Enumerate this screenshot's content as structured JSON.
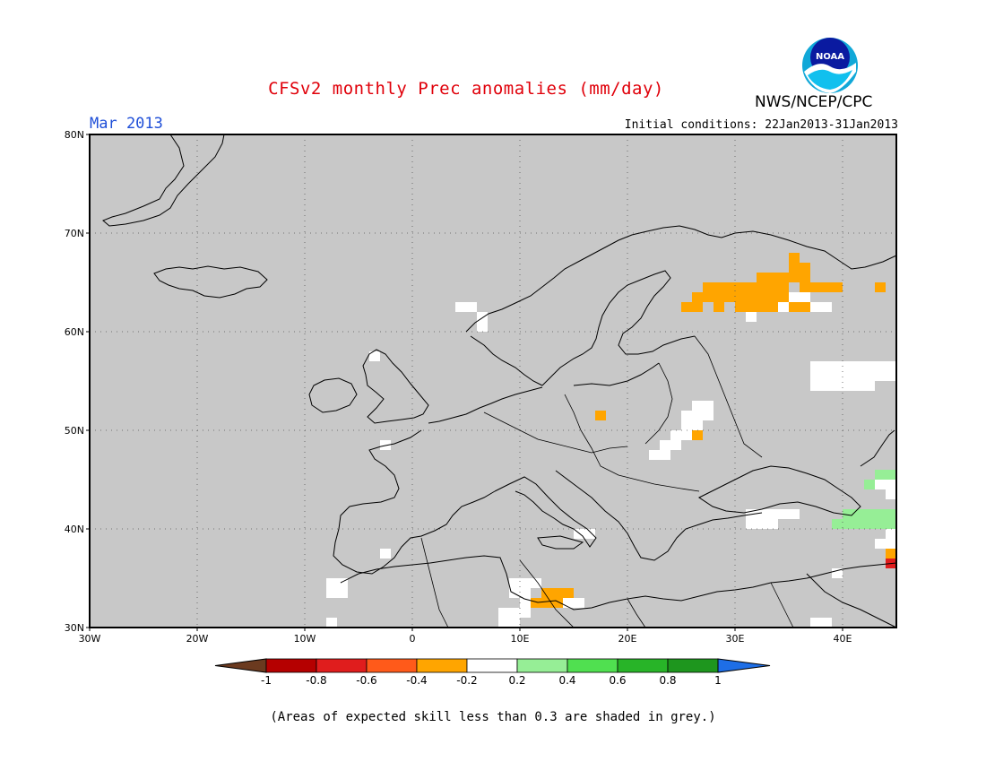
{
  "title": "CFSv2 monthly Prec anomalies (mm/day)",
  "month_label": "Mar 2013",
  "agency": "NWS/NCEP/CPC",
  "initial_conditions": "Initial conditions: 22Jan2013-31Jan2013",
  "footnote": "(Areas of expected skill less than 0.3 are shaded in grey.)",
  "logo_text": "NOAA",
  "colors": {
    "land_skill_grey": "#c8c8c8",
    "title_red": "#e0000a",
    "month_blue": "#1f4fd8"
  },
  "map": {
    "lat_labels": [
      "80N",
      "70N",
      "60N",
      "50N",
      "40N",
      "30N"
    ],
    "lon_labels": [
      "30W",
      "20W",
      "10W",
      "0",
      "10E",
      "20E",
      "30E",
      "40E"
    ]
  },
  "colorbar": {
    "labels": [
      "-1",
      "-0.8",
      "-0.6",
      "-0.4",
      "-0.2",
      "0.2",
      "0.4",
      "0.6",
      "0.8",
      "1"
    ],
    "colors": [
      "#6b3a1f",
      "#b50000",
      "#e01d1d",
      "#ff5a1a",
      "#ffa500",
      "#ffffff",
      "#96ee96",
      "#50e050",
      "#28b428",
      "#1e961e",
      "#1e6ee6"
    ]
  },
  "anomaly_cells": {
    "orange": [
      [
        26,
        63
      ],
      [
        27,
        63
      ],
      [
        28,
        63
      ],
      [
        29,
        63
      ],
      [
        30,
        63
      ],
      [
        31,
        63
      ],
      [
        32,
        63
      ],
      [
        33,
        63
      ],
      [
        34,
        63
      ],
      [
        35,
        63
      ],
      [
        27,
        64
      ],
      [
        28,
        64
      ],
      [
        29,
        64
      ],
      [
        30,
        64
      ],
      [
        31,
        64
      ],
      [
        32,
        64
      ],
      [
        33,
        64
      ],
      [
        34,
        64
      ],
      [
        36,
        64
      ],
      [
        37,
        64
      ],
      [
        38,
        64
      ],
      [
        39,
        64
      ],
      [
        32,
        65
      ],
      [
        33,
        65
      ],
      [
        34,
        65
      ],
      [
        35,
        65
      ],
      [
        36,
        65
      ],
      [
        30,
        62
      ],
      [
        31,
        62
      ],
      [
        32,
        62
      ],
      [
        33,
        62
      ],
      [
        34,
        62
      ],
      [
        35,
        62
      ],
      [
        36,
        62
      ],
      [
        25,
        62
      ],
      [
        26,
        62
      ],
      [
        28,
        62
      ],
      [
        35,
        66
      ],
      [
        36,
        66
      ],
      [
        35,
        67
      ],
      [
        43,
        64
      ],
      [
        17,
        51
      ],
      [
        26,
        49
      ],
      [
        12,
        33
      ],
      [
        13,
        33
      ],
      [
        14,
        33
      ],
      [
        11,
        32
      ],
      [
        12,
        32
      ],
      [
        13,
        32
      ],
      [
        44,
        37
      ]
    ],
    "white": [
      [
        4,
        62
      ],
      [
        5,
        62
      ],
      [
        6,
        61
      ],
      [
        35,
        63
      ],
      [
        36,
        63
      ],
      [
        37,
        62
      ],
      [
        38,
        62
      ],
      [
        31,
        61
      ],
      [
        34,
        62
      ],
      [
        37,
        56
      ],
      [
        38,
        56
      ],
      [
        39,
        56
      ],
      [
        40,
        56
      ],
      [
        41,
        56
      ],
      [
        42,
        56
      ],
      [
        43,
        56
      ],
      [
        44,
        56
      ],
      [
        37,
        55
      ],
      [
        38,
        55
      ],
      [
        39,
        55
      ],
      [
        40,
        55
      ],
      [
        41,
        55
      ],
      [
        42,
        55
      ],
      [
        43,
        55
      ],
      [
        44,
        55
      ],
      [
        37,
        54
      ],
      [
        38,
        54
      ],
      [
        39,
        54
      ],
      [
        40,
        54
      ],
      [
        41,
        54
      ],
      [
        42,
        54
      ],
      [
        26,
        52
      ],
      [
        27,
        52
      ],
      [
        26,
        51
      ],
      [
        27,
        51
      ],
      [
        25,
        51
      ],
      [
        25,
        50
      ],
      [
        26,
        50
      ],
      [
        24,
        49
      ],
      [
        25,
        49
      ],
      [
        24,
        48
      ],
      [
        23,
        48
      ],
      [
        23,
        47
      ],
      [
        22,
        47
      ],
      [
        -4,
        57
      ],
      [
        -3,
        48
      ],
      [
        -3,
        37
      ],
      [
        -8,
        34
      ],
      [
        -7,
        34
      ],
      [
        -8,
        33
      ],
      [
        -7,
        33
      ],
      [
        -8,
        30
      ],
      [
        6,
        60
      ],
      [
        9,
        34
      ],
      [
        10,
        34
      ],
      [
        11,
        34
      ],
      [
        9,
        33
      ],
      [
        10,
        33
      ],
      [
        10,
        32
      ],
      [
        9,
        31
      ],
      [
        10,
        31
      ],
      [
        8,
        30
      ],
      [
        9,
        30
      ],
      [
        8,
        31
      ],
      [
        31,
        41
      ],
      [
        32,
        41
      ],
      [
        33,
        41
      ],
      [
        34,
        41
      ],
      [
        35,
        41
      ],
      [
        31,
        40
      ],
      [
        32,
        40
      ],
      [
        33,
        40
      ],
      [
        43,
        44
      ],
      [
        44,
        44
      ],
      [
        44,
        43
      ],
      [
        39,
        35
      ],
      [
        38,
        30
      ],
      [
        37,
        30
      ],
      [
        43,
        38
      ],
      [
        44,
        38
      ],
      [
        44,
        39
      ],
      [
        15,
        39
      ],
      [
        16,
        39
      ],
      [
        14,
        32
      ],
      [
        15,
        32
      ]
    ],
    "lightgreen": [
      [
        44,
        45
      ],
      [
        43,
        45
      ],
      [
        42,
        44
      ],
      [
        40,
        41
      ],
      [
        41,
        41
      ],
      [
        42,
        41
      ],
      [
        43,
        41
      ],
      [
        44,
        41
      ],
      [
        39,
        40
      ],
      [
        40,
        40
      ],
      [
        41,
        40
      ],
      [
        42,
        40
      ],
      [
        43,
        40
      ],
      [
        44,
        40
      ]
    ],
    "red": [
      [
        44,
        36
      ],
      [
        45,
        36
      ]
    ]
  }
}
